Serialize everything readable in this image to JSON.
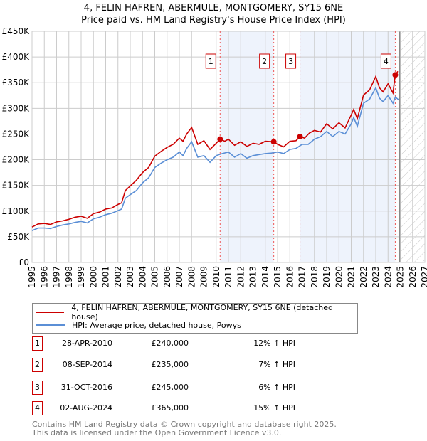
{
  "title": "4, FELIN HAFREN, ABERMULE, MONTGOMERY, SY15 6NE",
  "subtitle": "Price paid vs. HM Land Registry's House Price Index (HPI)",
  "chart_data": {
    "type": "line",
    "xlim": [
      1995,
      2027
    ],
    "ylim": [
      0,
      450000
    ],
    "yticks": [
      0,
      50000,
      100000,
      150000,
      200000,
      250000,
      300000,
      350000,
      400000,
      450000
    ],
    "ytick_labels": [
      "£0",
      "£50K",
      "£100K",
      "£150K",
      "£200K",
      "£250K",
      "£300K",
      "£350K",
      "£400K",
      "£450K"
    ],
    "xticks": [
      "1995",
      "1996",
      "1997",
      "1998",
      "1999",
      "2000",
      "2001",
      "2002",
      "2003",
      "2004",
      "2005",
      "2006",
      "2007",
      "2008",
      "2009",
      "2010",
      "2011",
      "2012",
      "2013",
      "2014",
      "2015",
      "2016",
      "2017",
      "2018",
      "2019",
      "2020",
      "2021",
      "2022",
      "2023",
      "2024",
      "2025",
      "2026",
      "2027"
    ],
    "grid": true,
    "forecast_from": 2025.0,
    "series": [
      {
        "name": "4, FELIN HAFREN, ABERMULE, MONTGOMERY, SY15 6NE (detached house)",
        "color": "#cc0000",
        "x": [
          1995,
          1995.5,
          1996,
          1996.5,
          1997,
          1997.5,
          1998,
          1998.5,
          1999,
          1999.5,
          2000,
          2000.5,
          2001,
          2001.5,
          2002,
          2002.3,
          2002.6,
          2003,
          2003.5,
          2004,
          2004.5,
          2005,
          2005.5,
          2006,
          2006.5,
          2007,
          2007.3,
          2007.6,
          2008,
          2008.5,
          2009,
          2009.5,
          2010,
          2010.33,
          2010.7,
          2011,
          2011.5,
          2012,
          2012.5,
          2013,
          2013.5,
          2014,
          2014.69,
          2015,
          2015.5,
          2016,
          2016.5,
          2016.83,
          2017.2,
          2017.6,
          2018,
          2018.5,
          2019,
          2019.5,
          2020,
          2020.5,
          2021,
          2021.2,
          2021.5,
          2022,
          2022.5,
          2023,
          2023.3,
          2023.6,
          2024,
          2024.4,
          2024.59,
          2024.8
        ],
        "y": [
          69000,
          75000,
          76000,
          74000,
          79000,
          81000,
          84000,
          88000,
          90000,
          86000,
          95000,
          98000,
          104000,
          106000,
          113000,
          116000,
          140000,
          149000,
          160000,
          175000,
          185000,
          207000,
          216000,
          224000,
          230000,
          242000,
          236000,
          250000,
          263000,
          230000,
          237000,
          220000,
          232000,
          240000,
          236000,
          240000,
          228000,
          235000,
          226000,
          232000,
          230000,
          236000,
          235000,
          230000,
          225000,
          236000,
          237000,
          245000,
          242000,
          252000,
          257000,
          254000,
          270000,
          260000,
          272000,
          262000,
          287000,
          298000,
          280000,
          326000,
          336000,
          362000,
          340000,
          332000,
          348000,
          330000,
          365000,
          372000
        ]
      },
      {
        "name": "HPI: Average price, detached house, Powys",
        "color": "#5b8fd6",
        "x": [
          1995,
          1995.5,
          1996,
          1996.5,
          1997,
          1997.5,
          1998,
          1998.5,
          1999,
          1999.5,
          2000,
          2000.5,
          2001,
          2001.5,
          2002,
          2002.3,
          2002.6,
          2003,
          2003.5,
          2004,
          2004.5,
          2005,
          2005.5,
          2006,
          2006.5,
          2007,
          2007.3,
          2007.6,
          2008,
          2008.5,
          2009,
          2009.5,
          2010,
          2010.5,
          2011,
          2011.5,
          2012,
          2012.5,
          2013,
          2013.5,
          2014,
          2014.5,
          2015,
          2015.5,
          2016,
          2016.5,
          2017,
          2017.5,
          2018,
          2018.5,
          2019,
          2019.5,
          2020,
          2020.5,
          2021,
          2021.2,
          2021.5,
          2022,
          2022.5,
          2023,
          2023.3,
          2023.6,
          2024,
          2024.4,
          2024.6,
          2024.9
        ],
        "y": [
          62000,
          67000,
          67000,
          66000,
          70000,
          73000,
          75000,
          78000,
          80000,
          77000,
          85000,
          88000,
          93000,
          96000,
          101000,
          104000,
          125000,
          132000,
          140000,
          155000,
          165000,
          185000,
          193000,
          200000,
          205000,
          215000,
          208000,
          222000,
          235000,
          205000,
          208000,
          195000,
          208000,
          212000,
          215000,
          205000,
          212000,
          203000,
          208000,
          210000,
          212000,
          213000,
          215000,
          212000,
          220000,
          222000,
          230000,
          230000,
          240000,
          245000,
          255000,
          245000,
          255000,
          250000,
          270000,
          282000,
          265000,
          310000,
          318000,
          340000,
          320000,
          313000,
          325000,
          310000,
          322000,
          316000
        ]
      }
    ],
    "sales": [
      {
        "label": "1",
        "x": 2010.32,
        "y": 240000
      },
      {
        "label": "2",
        "x": 2014.69,
        "y": 235000
      },
      {
        "label": "3",
        "x": 2016.83,
        "y": 245000
      },
      {
        "label": "4",
        "x": 2024.59,
        "y": 365000
      }
    ]
  },
  "legend": {
    "property": "4, FELIN HAFREN, ABERMULE, MONTGOMERY, SY15 6NE (detached house)",
    "hpi": "HPI: Average price, detached house, Powys"
  },
  "transactions": [
    {
      "num": "1",
      "date": "28-APR-2010",
      "price": "£240,000",
      "hpi": "12% ↑ HPI"
    },
    {
      "num": "2",
      "date": "08-SEP-2014",
      "price": "£235,000",
      "hpi": "7% ↑ HPI"
    },
    {
      "num": "3",
      "date": "31-OCT-2016",
      "price": "£245,000",
      "hpi": "6% ↑ HPI"
    },
    {
      "num": "4",
      "date": "02-AUG-2024",
      "price": "£365,000",
      "hpi": "15% ↑ HPI"
    }
  ],
  "footer": [
    "Contains HM Land Registry data © Crown copyright and database right 2025.",
    "This data is licensed under the Open Government Licence v3.0."
  ]
}
